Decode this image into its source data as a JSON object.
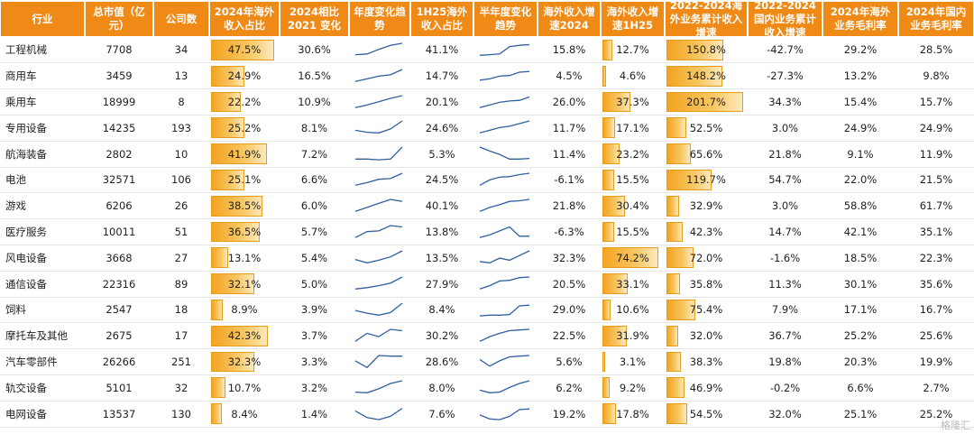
{
  "colors": {
    "header": "#ef8a17",
    "bar": "#f3a321",
    "spark": "#2f5f9e"
  },
  "chart_data": {
    "type": "table",
    "columns": [
      "行业",
      "总市值（亿元）",
      "公司数",
      "2024年海外收入占比",
      "2024相比2021 变化",
      "年度变化趋势",
      "1H25海外收入占比",
      "半年度变化趋势",
      "海外收入增速2024",
      "海外收入增速1H25",
      "2022-2024海外业务累计收入增速",
      "2022-2024国内业务累计收入增速",
      "2024年海外业务毛利率",
      "2024年国内业务毛利率"
    ],
    "rows": [
      {
        "industry": "工程机械",
        "mktcap": "7708",
        "count": "34",
        "os2024": "47.5%",
        "chg": "30.6%",
        "os1h25": "41.1%",
        "g2024": "15.8%",
        "g1h25": "12.7%",
        "cum_os": "150.8%",
        "cum_dom": "-42.7%",
        "gm_os": "29.2%",
        "gm_dom": "28.5%",
        "trend": [
          0.15,
          0.2,
          0.55,
          0.85,
          1.0
        ],
        "half": [
          0.1,
          0.15,
          0.2,
          0.75,
          0.85,
          0.9
        ]
      },
      {
        "industry": "商用车",
        "mktcap": "3459",
        "count": "13",
        "os2024": "24.9%",
        "chg": "16.5%",
        "os1h25": "14.7%",
        "g2024": "4.5%",
        "g1h25": "4.6%",
        "cum_os": "148.2%",
        "cum_dom": "-27.3%",
        "gm_os": "13.2%",
        "gm_dom": "9.8%",
        "trend": [
          0.1,
          0.3,
          0.5,
          0.6,
          1.0
        ],
        "half": [
          0.2,
          0.3,
          0.5,
          0.55,
          0.8,
          0.85
        ]
      },
      {
        "industry": "乘用车",
        "mktcap": "18999",
        "count": "8",
        "os2024": "22.2%",
        "chg": "10.9%",
        "os1h25": "20.1%",
        "g2024": "26.0%",
        "g1h25": "37.3%",
        "cum_os": "201.7%",
        "cum_dom": "34.3%",
        "gm_os": "15.4%",
        "gm_dom": "15.7%",
        "trend": [
          0.1,
          0.3,
          0.55,
          0.8,
          1.0
        ],
        "half": [
          0.1,
          0.3,
          0.5,
          0.6,
          0.65,
          0.9
        ]
      },
      {
        "industry": "专用设备",
        "mktcap": "14235",
        "count": "193",
        "os2024": "25.2%",
        "chg": "8.1%",
        "os1h25": "24.6%",
        "g2024": "11.7%",
        "g1h25": "17.1%",
        "cum_os": "52.5%",
        "cum_dom": "3.0%",
        "gm_os": "24.9%",
        "gm_dom": "24.9%",
        "trend": [
          0.3,
          0.15,
          0.1,
          0.4,
          1.0
        ],
        "half": [
          0.1,
          0.3,
          0.5,
          0.6,
          0.8,
          1.0
        ]
      },
      {
        "industry": "航海装备",
        "mktcap": "2802",
        "count": "10",
        "os2024": "41.9%",
        "chg": "7.2%",
        "os1h25": "5.3%",
        "g2024": "11.4%",
        "g1h25": "23.2%",
        "cum_os": "65.6%",
        "cum_dom": "21.8%",
        "gm_os": "9.1%",
        "gm_dom": "11.9%",
        "trend": [
          0.1,
          0.1,
          0.05,
          0.1,
          1.0
        ],
        "half": [
          1.0,
          0.7,
          0.45,
          0.1,
          0.1,
          0.15
        ]
      },
      {
        "industry": "电池",
        "mktcap": "32571",
        "count": "106",
        "os2024": "25.1%",
        "chg": "6.6%",
        "os1h25": "24.5%",
        "g2024": "-6.1%",
        "g1h25": "15.5%",
        "cum_os": "119.7%",
        "cum_dom": "54.7%",
        "gm_os": "22.0%",
        "gm_dom": "21.5%",
        "trend": [
          0.1,
          0.3,
          0.55,
          0.6,
          1.0
        ],
        "half": [
          0.1,
          0.5,
          0.7,
          0.75,
          0.9,
          1.0
        ]
      },
      {
        "industry": "游戏",
        "mktcap": "6206",
        "count": "26",
        "os2024": "38.5%",
        "chg": "6.0%",
        "os1h25": "40.1%",
        "g2024": "21.8%",
        "g1h25": "30.4%",
        "cum_os": "32.9%",
        "cum_dom": "3.0%",
        "gm_os": "58.8%",
        "gm_dom": "61.7%",
        "trend": [
          0.1,
          0.4,
          0.7,
          1.0,
          0.85
        ],
        "half": [
          0.1,
          0.4,
          0.6,
          0.85,
          0.9,
          1.0
        ]
      },
      {
        "industry": "医疗服务",
        "mktcap": "10011",
        "count": "51",
        "os2024": "36.5%",
        "chg": "5.7%",
        "os1h25": "13.8%",
        "g2024": "-6.3%",
        "g1h25": "15.5%",
        "cum_os": "42.3%",
        "cum_dom": "14.7%",
        "gm_os": "42.1%",
        "gm_dom": "35.1%",
        "trend": [
          0.1,
          0.55,
          0.6,
          1.0,
          0.9
        ],
        "half": [
          0.1,
          0.3,
          0.6,
          0.9,
          0.2,
          0.2
        ]
      },
      {
        "industry": "风电设备",
        "mktcap": "3668",
        "count": "27",
        "os2024": "13.1%",
        "chg": "5.4%",
        "os1h25": "13.5%",
        "g2024": "32.3%",
        "g1h25": "74.2%",
        "cum_os": "72.0%",
        "cum_dom": "-1.6%",
        "gm_os": "18.5%",
        "gm_dom": "22.3%",
        "trend": [
          0.35,
          0.1,
          0.3,
          0.55,
          1.0
        ],
        "half": [
          0.2,
          0.1,
          0.45,
          0.3,
          0.65,
          1.0
        ]
      },
      {
        "industry": "通信设备",
        "mktcap": "22316",
        "count": "89",
        "os2024": "32.1%",
        "chg": "5.0%",
        "os1h25": "27.9%",
        "g2024": "20.5%",
        "g1h25": "33.1%",
        "cum_os": "35.8%",
        "cum_dom": "11.3%",
        "gm_os": "30.1%",
        "gm_dom": "35.6%",
        "trend": [
          0.1,
          0.2,
          0.35,
          0.55,
          1.0
        ],
        "half": [
          0.1,
          0.35,
          0.7,
          0.75,
          0.95,
          1.0
        ]
      },
      {
        "industry": "饲料",
        "mktcap": "2547",
        "count": "18",
        "os2024": "8.9%",
        "chg": "3.9%",
        "os1h25": "8.4%",
        "g2024": "29.0%",
        "g1h25": "10.6%",
        "cum_os": "75.4%",
        "cum_dom": "7.9%",
        "gm_os": "17.1%",
        "gm_dom": "16.7%",
        "trend": [
          0.45,
          0.25,
          0.1,
          0.3,
          1.0
        ],
        "half": [
          0.05,
          0.1,
          0.1,
          0.15,
          0.8,
          0.85
        ]
      },
      {
        "industry": "摩托车及其他",
        "mktcap": "2675",
        "count": "17",
        "os2024": "42.3%",
        "chg": "3.7%",
        "os1h25": "30.2%",
        "g2024": "22.5%",
        "g1h25": "31.9%",
        "cum_os": "32.0%",
        "cum_dom": "36.7%",
        "gm_os": "25.2%",
        "gm_dom": "25.6%",
        "trend": [
          0.1,
          0.7,
          0.45,
          1.0,
          0.9
        ],
        "half": [
          0.1,
          0.45,
          0.7,
          0.9,
          0.95,
          1.0
        ]
      },
      {
        "industry": "汽车零部件",
        "mktcap": "26266",
        "count": "251",
        "os2024": "32.3%",
        "chg": "3.3%",
        "os1h25": "28.6%",
        "g2024": "5.6%",
        "g1h25": "3.1%",
        "cum_os": "38.3%",
        "cum_dom": "19.8%",
        "gm_os": "20.3%",
        "gm_dom": "19.9%",
        "trend": [
          0.6,
          0.1,
          1.0,
          0.95,
          0.95
        ],
        "half": [
          0.7,
          0.2,
          0.6,
          0.9,
          0.95,
          1.0
        ]
      },
      {
        "industry": "轨交设备",
        "mktcap": "5101",
        "count": "32",
        "os2024": "10.7%",
        "chg": "3.2%",
        "os1h25": "8.0%",
        "g2024": "6.2%",
        "g1h25": "9.2%",
        "cum_os": "46.9%",
        "cum_dom": "-0.2%",
        "gm_os": "6.6%",
        "gm_dom": "2.7%",
        "trend": [
          0.15,
          0.1,
          0.4,
          0.8,
          1.0
        ],
        "half": [
          0.3,
          0.1,
          0.15,
          0.5,
          0.8,
          1.0
        ]
      },
      {
        "industry": "电网设备",
        "mktcap": "13537",
        "count": "130",
        "os2024": "8.4%",
        "chg": "1.4%",
        "os1h25": "7.6%",
        "g2024": "19.2%",
        "g1h25": "17.8%",
        "cum_os": "54.5%",
        "cum_dom": "32.0%",
        "gm_os": "25.1%",
        "gm_dom": "25.2%",
        "trend": [
          0.7,
          0.2,
          0.05,
          0.3,
          0.9
        ],
        "half": [
          0.4,
          0.1,
          0.05,
          0.3,
          0.8,
          0.85
        ]
      }
    ],
    "bar_max": {
      "os2024": 50,
      "g1h25": 80,
      "cum_os": 210
    }
  },
  "watermark": "格隆汇"
}
